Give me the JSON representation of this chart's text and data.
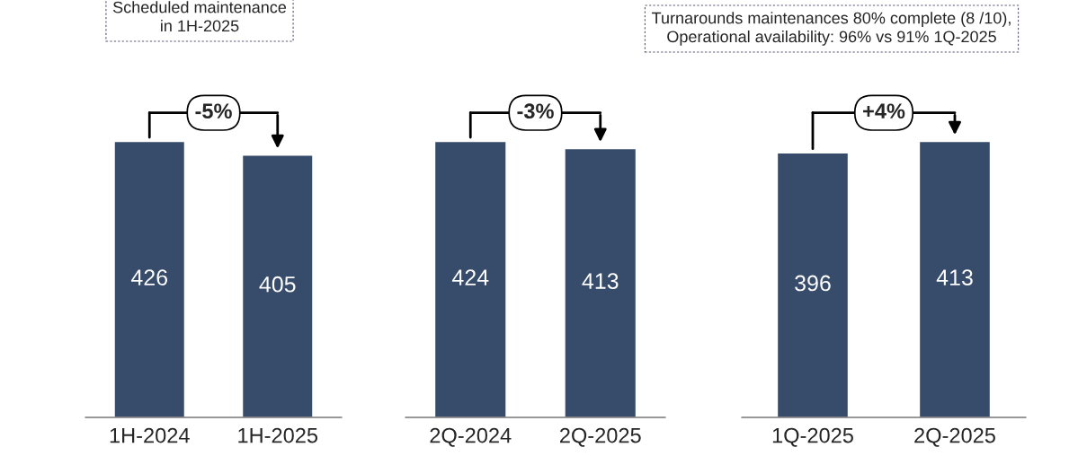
{
  "chart_data": [
    {
      "type": "bar",
      "categories": [
        "1H-2024",
        "1H-2025"
      ],
      "values": [
        426,
        405
      ],
      "color": "#374b6b",
      "data_labels": true,
      "annotations": [
        "-5%",
        "Scheduled maintenance\nin 1H-2025"
      ]
    },
    {
      "type": "bar",
      "categories": [
        "2Q-2024",
        "2Q-2025"
      ],
      "values": [
        424,
        413
      ],
      "color": "#374b6b",
      "data_labels": true,
      "annotations": [
        "-3%"
      ]
    },
    {
      "type": "bar",
      "categories": [
        "1Q-2025",
        "2Q-2025"
      ],
      "values": [
        396,
        413
      ],
      "color": "#374b6b",
      "data_labels": true,
      "annotations": [
        "+4%",
        "Turnarounds maintenances 80% complete (8 /10),\nOperational availability: 96% vs 91% 1Q-2025"
      ]
    }
  ]
}
